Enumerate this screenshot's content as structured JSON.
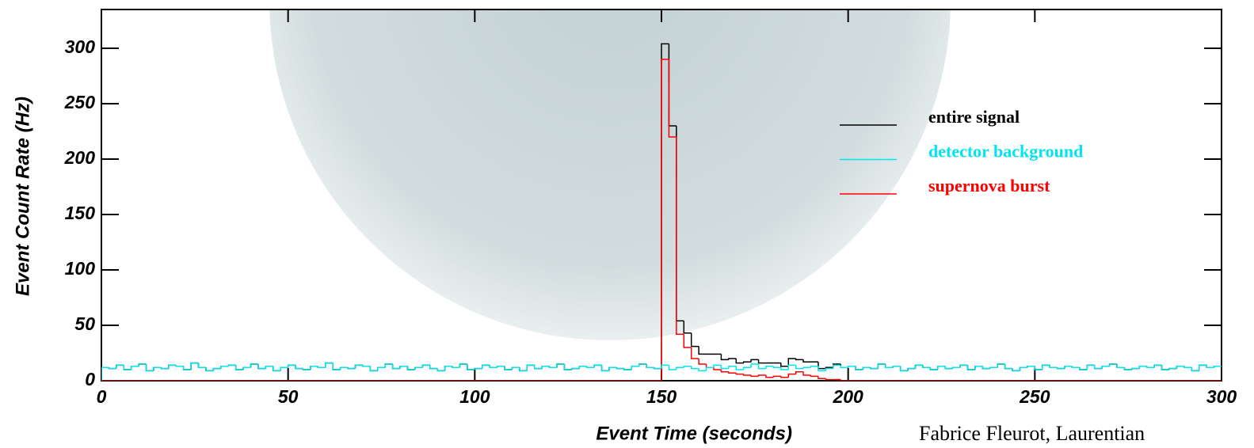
{
  "chart_data": {
    "type": "histogram",
    "xlabel": "Event Time  (seconds)",
    "ylabel": "Event Count Rate  (Hz)",
    "credit": "Fabrice Fleurot, Laurentian",
    "xlim": [
      0,
      300
    ],
    "xticks": [
      0,
      50,
      100,
      150,
      200,
      250,
      300
    ],
    "ylim": [
      0,
      335
    ],
    "yticks": [
      0,
      50,
      100,
      150,
      200,
      250,
      300
    ],
    "bins": [
      0,
      2,
      4,
      6,
      8,
      10,
      12,
      14,
      16,
      18,
      20,
      22,
      24,
      26,
      28,
      30,
      32,
      34,
      36,
      38,
      40,
      42,
      44,
      46,
      48,
      50,
      52,
      54,
      56,
      58,
      60,
      62,
      64,
      66,
      68,
      70,
      72,
      74,
      76,
      78,
      80,
      82,
      84,
      86,
      88,
      90,
      92,
      94,
      96,
      98,
      100,
      102,
      104,
      106,
      108,
      110,
      112,
      114,
      116,
      118,
      120,
      122,
      124,
      126,
      128,
      130,
      132,
      134,
      136,
      138,
      140,
      142,
      144,
      146,
      148,
      150,
      152,
      154,
      156,
      158,
      160,
      162,
      164,
      166,
      168,
      170,
      172,
      174,
      176,
      178,
      180,
      182,
      184,
      186,
      188,
      190,
      192,
      194,
      196,
      198,
      200,
      202,
      204,
      206,
      208,
      210,
      212,
      214,
      216,
      218,
      220,
      222,
      224,
      226,
      228,
      230,
      232,
      234,
      236,
      238,
      240,
      242,
      244,
      246,
      248,
      250,
      252,
      254,
      256,
      258,
      260,
      262,
      264,
      266,
      268,
      270,
      272,
      274,
      276,
      278,
      280,
      282,
      284,
      286,
      288,
      290,
      292,
      294,
      296,
      298,
      300
    ],
    "series": [
      {
        "name": "entire signal",
        "color": "#000000",
        "values": [
          12,
          11,
          14,
          10,
          13,
          15,
          9,
          12,
          11,
          14,
          13,
          10,
          16,
          12,
          9,
          11,
          13,
          14,
          10,
          12,
          15,
          11,
          13,
          9,
          12,
          14,
          11,
          10,
          13,
          12,
          16,
          10,
          12,
          11,
          14,
          13,
          9,
          12,
          15,
          11,
          13,
          10,
          12,
          14,
          11,
          9,
          13,
          12,
          15,
          10,
          11,
          14,
          12,
          13,
          10,
          12,
          9,
          14,
          11,
          13,
          12,
          15,
          10,
          11,
          13,
          12,
          14,
          9,
          12,
          11,
          10,
          13,
          15,
          12,
          11,
          304,
          230,
          54,
          43,
          31,
          24,
          24,
          24,
          19,
          20,
          16,
          17,
          19,
          16,
          16,
          16,
          13,
          20,
          19,
          17,
          17,
          11,
          12,
          15,
          12,
          13,
          10,
          12,
          11,
          15,
          12,
          13,
          9,
          11,
          14,
          12,
          10,
          13,
          11,
          12,
          14,
          10,
          13,
          11,
          12,
          15,
          11,
          9,
          12,
          13,
          10,
          14,
          12,
          11,
          13,
          12,
          10,
          14,
          11,
          13,
          15,
          12,
          10,
          11,
          13,
          12,
          14,
          10,
          11,
          13,
          12,
          9,
          14,
          12,
          13
        ]
      },
      {
        "name": "detector background",
        "color": "#00e5ee",
        "values": [
          12,
          11,
          14,
          10,
          13,
          15,
          9,
          12,
          11,
          14,
          13,
          10,
          16,
          12,
          9,
          11,
          13,
          14,
          10,
          12,
          15,
          11,
          13,
          9,
          12,
          14,
          11,
          10,
          13,
          12,
          16,
          10,
          12,
          11,
          14,
          13,
          9,
          12,
          15,
          11,
          13,
          10,
          12,
          14,
          11,
          9,
          13,
          12,
          15,
          10,
          11,
          14,
          12,
          13,
          10,
          12,
          9,
          14,
          11,
          13,
          12,
          15,
          10,
          11,
          13,
          12,
          14,
          9,
          12,
          11,
          10,
          13,
          15,
          12,
          11,
          14,
          10,
          12,
          13,
          11,
          9,
          12,
          14,
          11,
          13,
          10,
          12,
          15,
          11,
          13,
          12,
          10,
          14,
          11,
          12,
          13,
          9,
          11,
          14,
          12,
          13,
          10,
          12,
          11,
          15,
          12,
          13,
          9,
          11,
          14,
          12,
          10,
          13,
          11,
          12,
          14,
          10,
          13,
          11,
          12,
          15,
          11,
          9,
          12,
          13,
          10,
          14,
          12,
          11,
          13,
          12,
          10,
          14,
          11,
          13,
          15,
          12,
          10,
          11,
          13,
          12,
          14,
          10,
          11,
          13,
          12,
          9,
          14,
          12,
          13
        ]
      },
      {
        "name": "supernova burst",
        "color": "#ff0000",
        "values": [
          0,
          0,
          0,
          0,
          0,
          0,
          0,
          0,
          0,
          0,
          0,
          0,
          0,
          0,
          0,
          0,
          0,
          0,
          0,
          0,
          0,
          0,
          0,
          0,
          0,
          0,
          0,
          0,
          0,
          0,
          0,
          0,
          0,
          0,
          0,
          0,
          0,
          0,
          0,
          0,
          0,
          0,
          0,
          0,
          0,
          0,
          0,
          0,
          0,
          0,
          0,
          0,
          0,
          0,
          0,
          0,
          0,
          0,
          0,
          0,
          0,
          0,
          0,
          0,
          0,
          0,
          0,
          0,
          0,
          0,
          0,
          0,
          0,
          0,
          0,
          290,
          220,
          42,
          30,
          20,
          15,
          12,
          10,
          8,
          7,
          6,
          5,
          4,
          5,
          3,
          4,
          3,
          6,
          8,
          5,
          4,
          2,
          1,
          1,
          0,
          0,
          0,
          0,
          0,
          0,
          0,
          0,
          0,
          0,
          0,
          0,
          0,
          0,
          0,
          0,
          0,
          0,
          0,
          0,
          0,
          0,
          0,
          0,
          0,
          0,
          0,
          0,
          0,
          0,
          0,
          0,
          0,
          0,
          0,
          0,
          0,
          0,
          0,
          0,
          0,
          0,
          0,
          0,
          0,
          0,
          0,
          0,
          0,
          0,
          0
        ]
      }
    ]
  }
}
